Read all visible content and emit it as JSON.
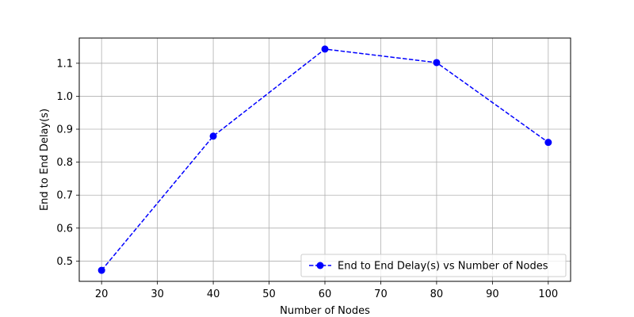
{
  "chart_data": {
    "type": "line",
    "title": "",
    "xlabel": "Number of Nodes",
    "ylabel": "End to End Delay(s)",
    "x": [
      20,
      40,
      60,
      80,
      100
    ],
    "series": [
      {
        "name": "End to End Delay(s) vs Number of Nodes",
        "values": [
          0.472,
          0.879,
          1.143,
          1.102,
          0.86
        ],
        "color": "#0000ff",
        "line_style": "dashed",
        "marker": "circle"
      }
    ],
    "xlim": [
      16,
      104
    ],
    "ylim": [
      0.4385,
      1.1765
    ],
    "xticks": [
      20,
      30,
      40,
      50,
      60,
      70,
      80,
      90,
      100
    ],
    "yticks": [
      0.5,
      0.6,
      0.7,
      0.8,
      0.9,
      1.0,
      1.1
    ],
    "ytick_labels": [
      "0.5",
      "0.6",
      "0.7",
      "0.8",
      "0.9",
      "1.0",
      "1.1"
    ],
    "grid": true,
    "grid_color": "#b0b0b0",
    "legend_position": "lower-right"
  }
}
